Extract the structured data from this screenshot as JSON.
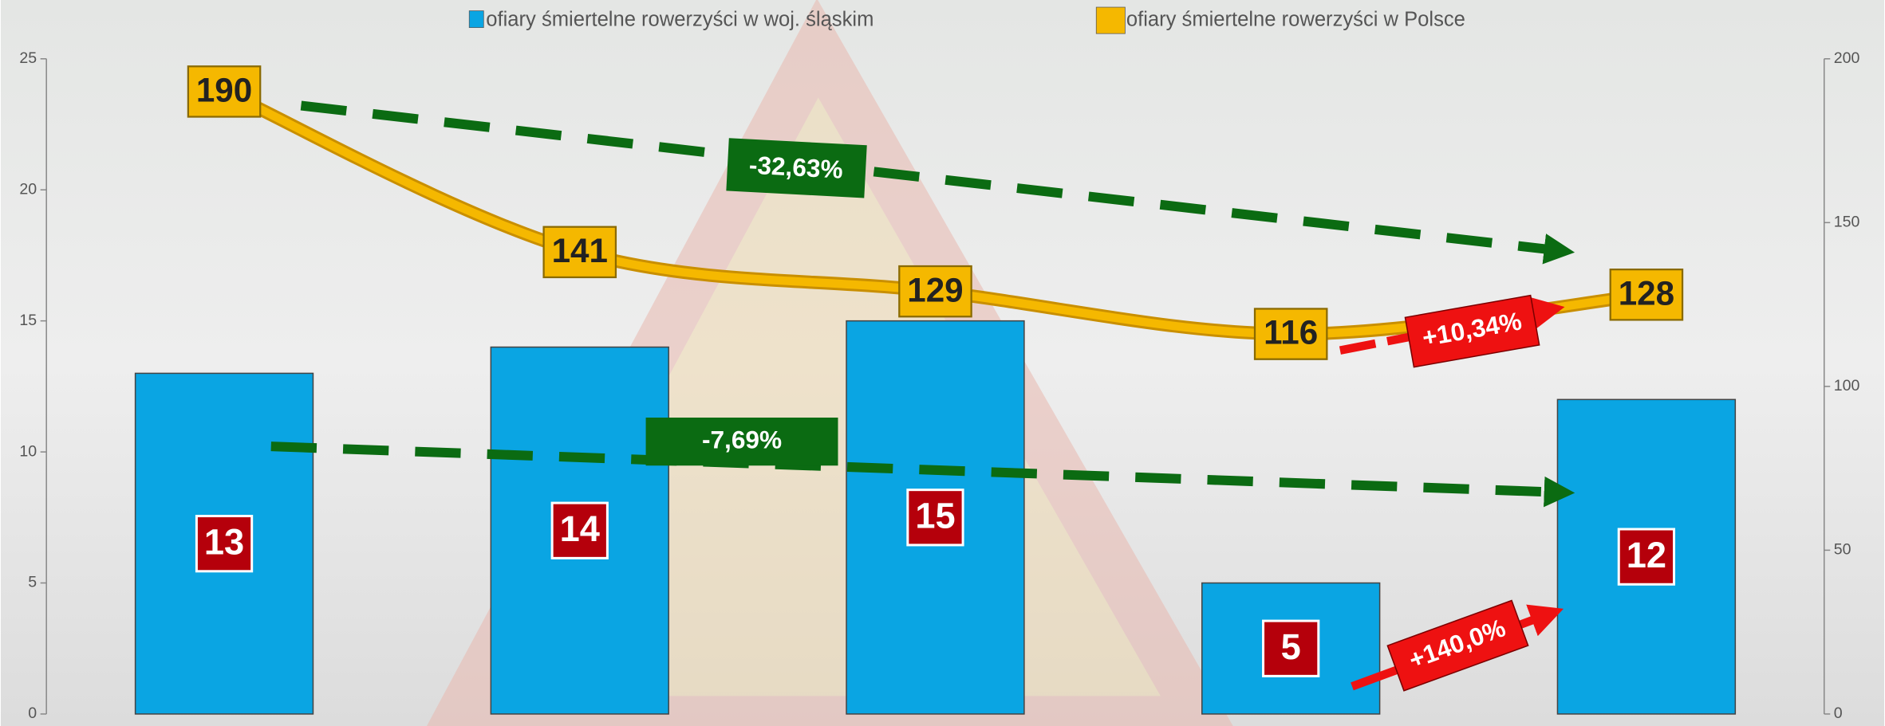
{
  "chart_data": {
    "type": "combo",
    "categories": [
      null,
      null,
      null,
      null,
      null
    ],
    "series": [
      {
        "name": "ofiary śmiertelne rowerzyści w woj. śląskim",
        "type": "bar",
        "color": "#0aa5e3",
        "values": [
          13,
          14,
          15,
          5,
          12
        ]
      },
      {
        "name": "ofiary śmiertelne rowerzyści w Polsce",
        "type": "line",
        "axis": "y2",
        "color": "#f5b800",
        "values": [
          190,
          141,
          129,
          116,
          128
        ]
      }
    ],
    "ylim": [
      0,
      25
    ],
    "yticks": [
      0,
      5,
      10,
      15,
      20,
      25
    ],
    "y2lim": [
      0,
      200
    ],
    "y2ticks": [
      0,
      50,
      100,
      150,
      200
    ],
    "annotations": [
      "-32,63%",
      "+10,34%",
      "-7,69%",
      "+140,0%"
    ],
    "legend": "top"
  }
}
